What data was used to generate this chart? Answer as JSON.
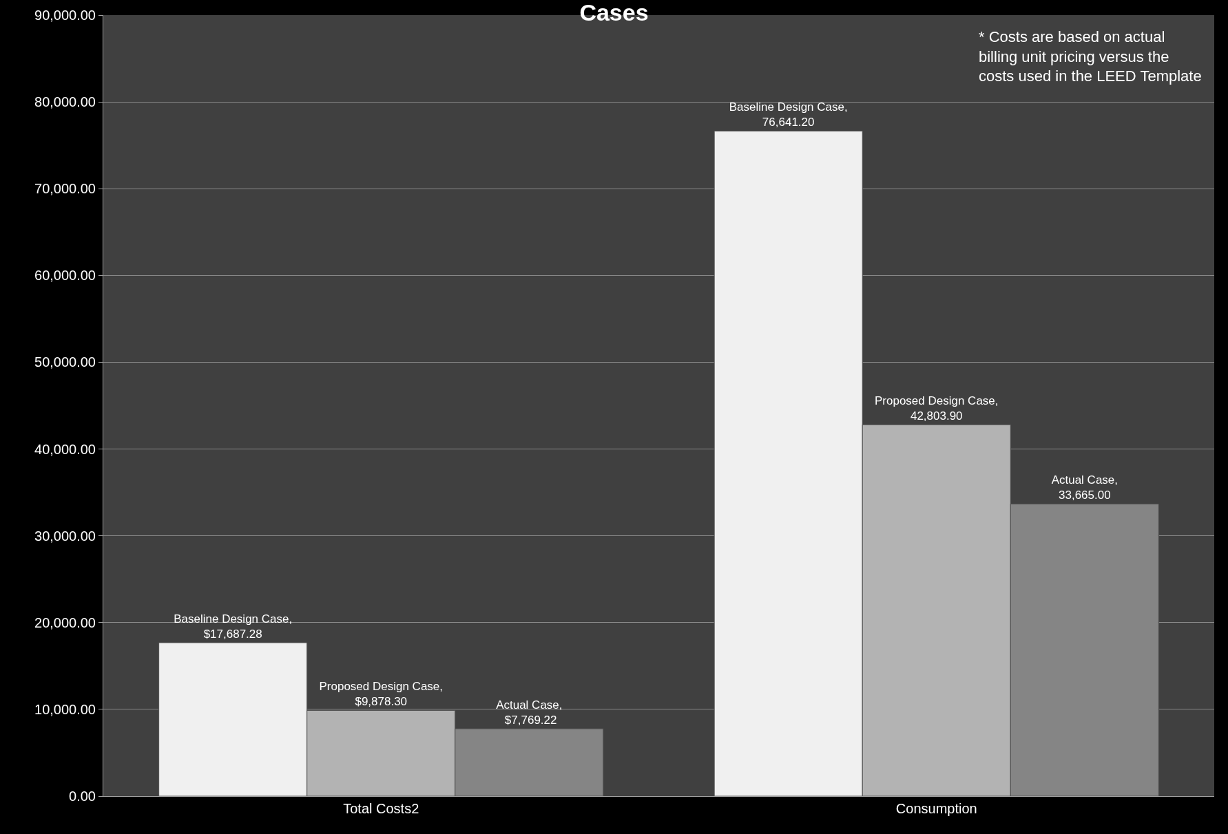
{
  "chart_data": {
    "type": "bar",
    "title": "Cases",
    "categories": [
      "Total Costs2",
      "Consumption"
    ],
    "series": [
      {
        "color": "#f0f0f0",
        "values": [
          17687.28,
          76641.2
        ],
        "value_labels": [
          "Baseline Design Case, $17,687.28",
          "Baseline Design Case, 76,641.20"
        ]
      },
      {
        "color": "#b3b3b3",
        "values": [
          9878.3,
          42803.9
        ],
        "value_labels": [
          "Proposed Design Case, $9,878.30",
          "Proposed Design Case, 42,803.90"
        ]
      },
      {
        "color": "#858585",
        "values": [
          7769.22,
          33665.0
        ],
        "value_labels": [
          "Actual Case,  $7,769.22",
          "Actual Case, 33,665.00"
        ]
      }
    ],
    "ylim": [
      0,
      90000
    ],
    "yticks": [
      {
        "value": 0,
        "label": "0.00"
      },
      {
        "value": 10000,
        "label": "10,000.00"
      },
      {
        "value": 20000,
        "label": "20,000.00"
      },
      {
        "value": 30000,
        "label": "30,000.00"
      },
      {
        "value": 40000,
        "label": "40,000.00"
      },
      {
        "value": 50000,
        "label": "50,000.00"
      },
      {
        "value": 60000,
        "label": "60,000.00"
      },
      {
        "value": 70000,
        "label": "70,000.00"
      },
      {
        "value": 80000,
        "label": "80,000.00"
      },
      {
        "value": 90000,
        "label": "90,000.00"
      }
    ],
    "grid": "y",
    "legend": false,
    "annotations": [
      "* Costs are based on actual billing unit pricing versus the costs used in the LEED Template"
    ]
  }
}
